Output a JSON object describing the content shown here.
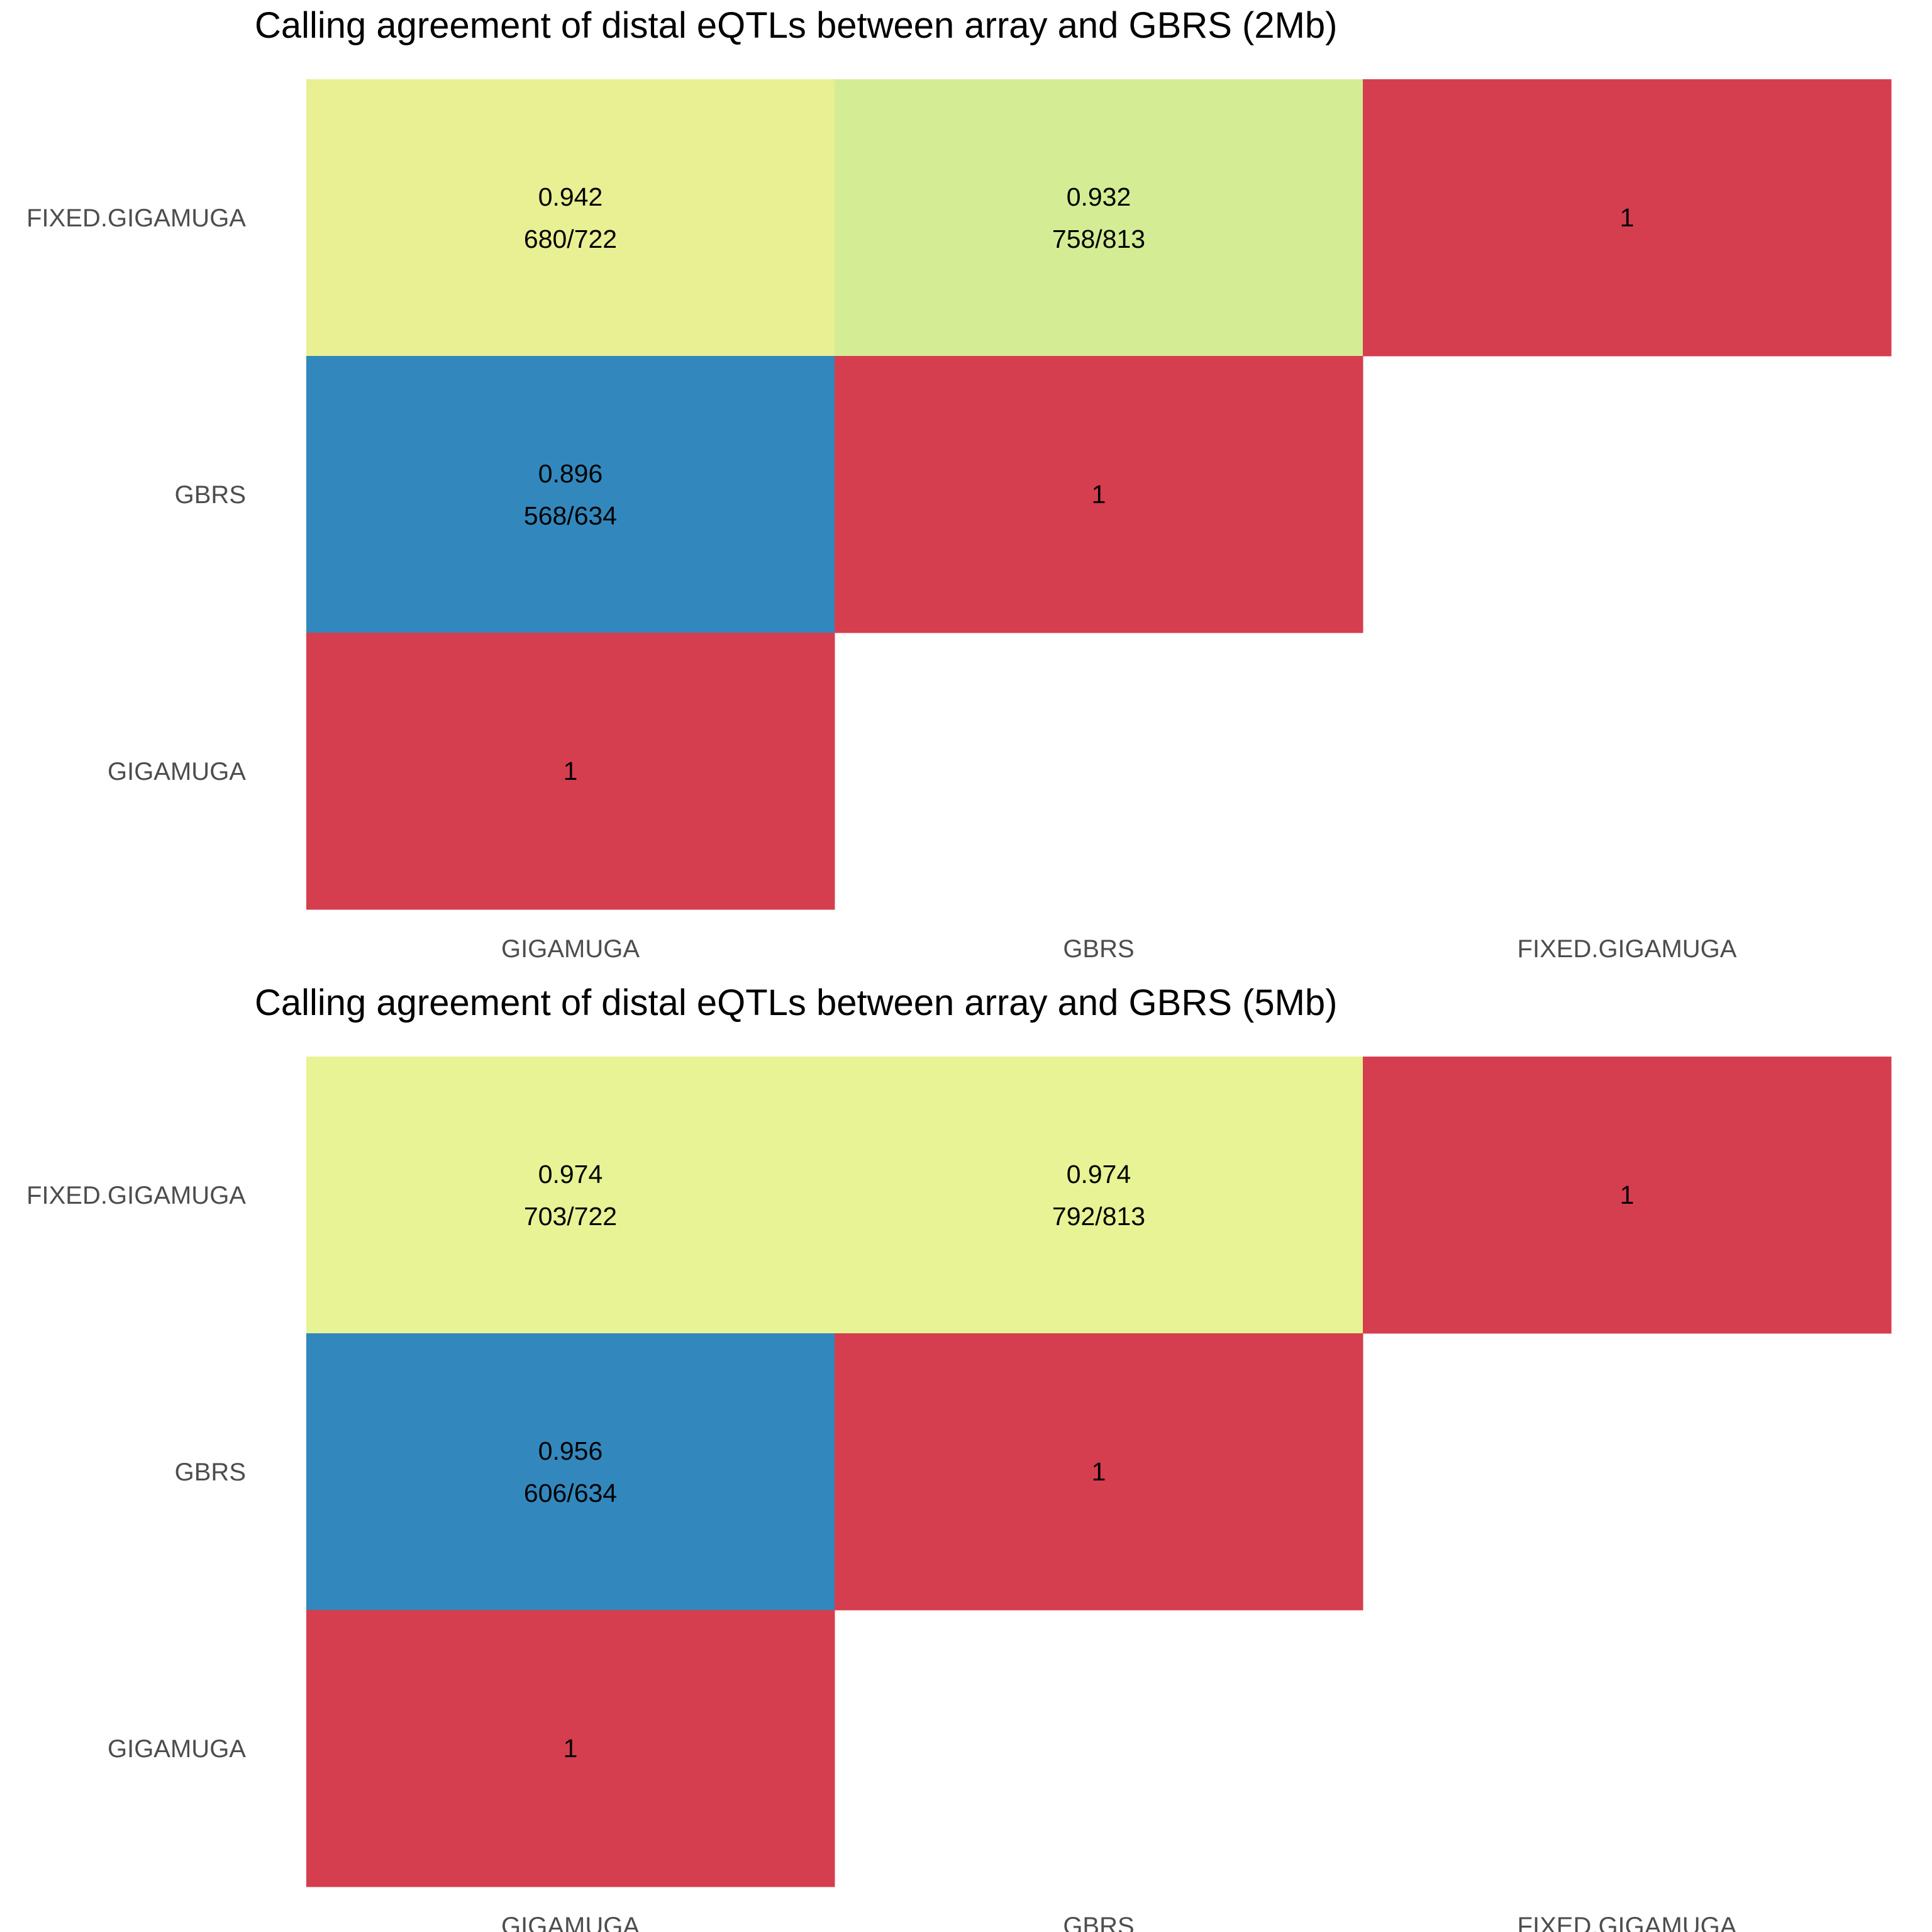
{
  "chart_data": [
    {
      "type": "heatmap",
      "title": "Calling agreement of distal eQTLs between array and GBRS (2Mb)",
      "x_categories": [
        "GIGAMUGA",
        "GBRS",
        "FIXED.GIGAMUGA"
      ],
      "y_categories": [
        "FIXED.GIGAMUGA",
        "GBRS",
        "GIGAMUGA"
      ],
      "cells": [
        {
          "x": "GIGAMUGA",
          "y": "FIXED.GIGAMUGA",
          "value": "0.942",
          "count": "680/722",
          "color": "#e9ef93"
        },
        {
          "x": "GBRS",
          "y": "FIXED.GIGAMUGA",
          "value": "0.932",
          "count": "758/813",
          "color": "#d4ed94"
        },
        {
          "x": "FIXED.GIGAMUGA",
          "y": "FIXED.GIGAMUGA",
          "value": "1",
          "count": "",
          "color": "#d53e4f"
        },
        {
          "x": "GIGAMUGA",
          "y": "GBRS",
          "value": "0.896",
          "count": "568/634",
          "color": "#3288bd"
        },
        {
          "x": "GBRS",
          "y": "GBRS",
          "value": "1",
          "count": "",
          "color": "#d53e4f"
        },
        {
          "x": "GIGAMUGA",
          "y": "GIGAMUGA",
          "value": "1",
          "count": "",
          "color": "#d53e4f"
        }
      ],
      "legend": "none",
      "grid": false
    },
    {
      "type": "heatmap",
      "title": "Calling agreement of distal eQTLs between array and GBRS (5Mb)",
      "x_categories": [
        "GIGAMUGA",
        "GBRS",
        "FIXED.GIGAMUGA"
      ],
      "y_categories": [
        "FIXED.GIGAMUGA",
        "GBRS",
        "GIGAMUGA"
      ],
      "cells": [
        {
          "x": "GIGAMUGA",
          "y": "FIXED.GIGAMUGA",
          "value": "0.974",
          "count": "703/722",
          "color": "#e7f394"
        },
        {
          "x": "GBRS",
          "y": "FIXED.GIGAMUGA",
          "value": "0.974",
          "count": "792/813",
          "color": "#e7f394"
        },
        {
          "x": "FIXED.GIGAMUGA",
          "y": "FIXED.GIGAMUGA",
          "value": "1",
          "count": "",
          "color": "#d53e4f"
        },
        {
          "x": "GIGAMUGA",
          "y": "GBRS",
          "value": "0.956",
          "count": "606/634",
          "color": "#3288bd"
        },
        {
          "x": "GBRS",
          "y": "GBRS",
          "value": "1",
          "count": "",
          "color": "#d53e4f"
        },
        {
          "x": "GIGAMUGA",
          "y": "GIGAMUGA",
          "value": "1",
          "count": "",
          "color": "#d53e4f"
        }
      ],
      "legend": "none",
      "grid": false
    }
  ]
}
